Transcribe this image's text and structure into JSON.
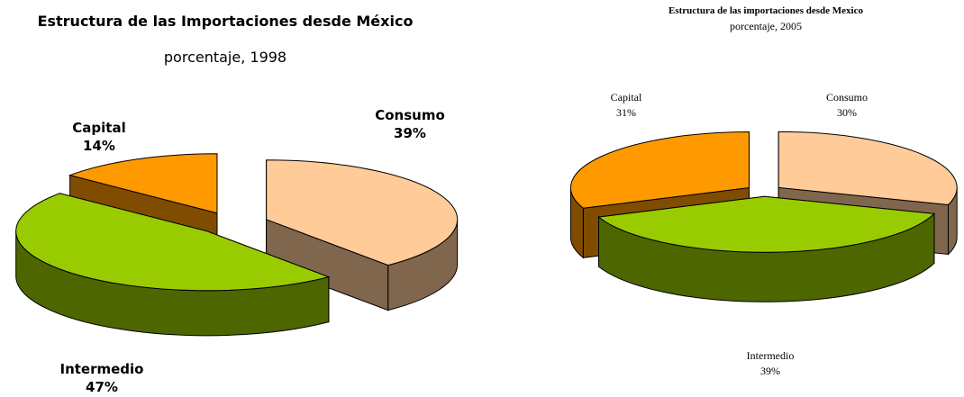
{
  "chart_data": [
    {
      "type": "pie",
      "title": "Estructura de las Importaciones desde México",
      "subtitle": "porcentaje, 1998",
      "categories": [
        "Consumo",
        "Intermedio",
        "Capital"
      ],
      "values": [
        39,
        47,
        14
      ],
      "value_labels": [
        "39%",
        "47%",
        "14%"
      ],
      "colors": [
        "#ffcc99",
        "#99cc00",
        "#ff9900"
      ]
    },
    {
      "type": "pie",
      "title": "Estructura de las importaciones desde Mexico",
      "subtitle": "porcentaje, 2005",
      "categories": [
        "Consumo",
        "Intermedio",
        "Capital"
      ],
      "values": [
        30,
        39,
        31
      ],
      "value_labels": [
        "30%",
        "39%",
        "31%"
      ],
      "colors": [
        "#ffcc99",
        "#99cc00",
        "#ff9900"
      ]
    }
  ]
}
